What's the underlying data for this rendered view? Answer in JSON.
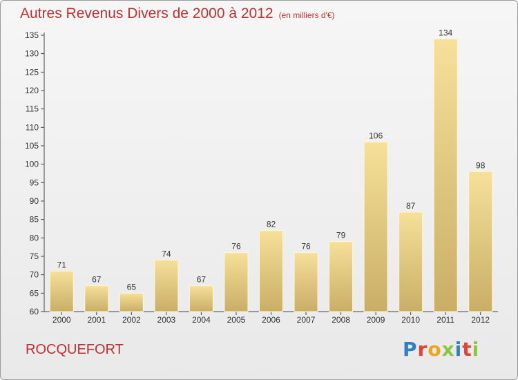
{
  "header": {
    "title": "Autres Revenus Divers de 2000 à 2012",
    "subtitle": "(en milliers d'€)"
  },
  "footer": {
    "city": "ROCQUEFORT",
    "logo_text": "Proxiti"
  },
  "colors": {
    "title": "#c03030",
    "bar_light": "#f6e09a",
    "bar_dark": "#c9ae66",
    "logo": [
      "#2f7fc4",
      "#e0442e",
      "#f0a31e",
      "#8cc63f",
      "#2f7fc4",
      "#e0442e",
      "#8cc63f"
    ]
  },
  "chart_data": {
    "type": "bar",
    "title": "Autres Revenus Divers de 2000 à 2012",
    "subtitle": "(en milliers d'€)",
    "categories": [
      "2000",
      "2001",
      "2002",
      "2003",
      "2004",
      "2005",
      "2006",
      "2007",
      "2008",
      "2009",
      "2010",
      "2011",
      "2012"
    ],
    "values": [
      71,
      67,
      65,
      74,
      67,
      76,
      82,
      76,
      79,
      106,
      87,
      134,
      98
    ],
    "ylim": [
      60,
      135
    ],
    "yticks": [
      60,
      65,
      70,
      75,
      80,
      85,
      90,
      95,
      100,
      105,
      110,
      115,
      120,
      125,
      130,
      135
    ],
    "grid": false,
    "xlabel": "",
    "ylabel": ""
  }
}
